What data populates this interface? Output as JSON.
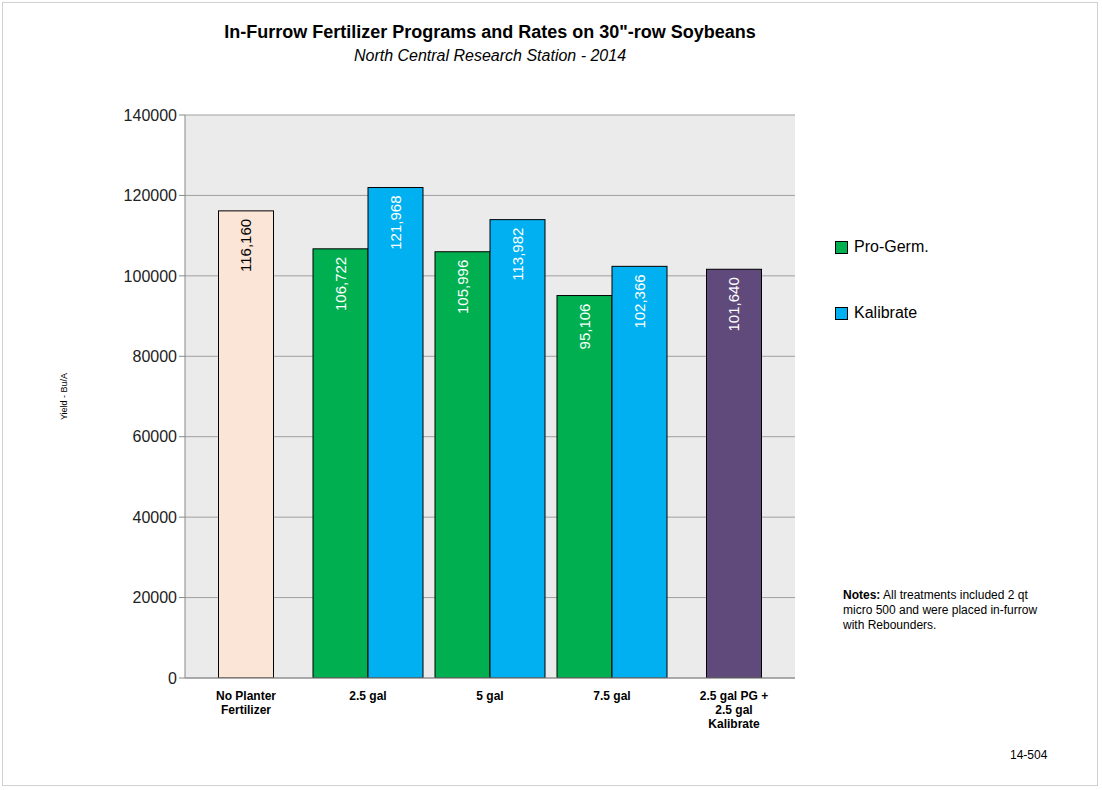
{
  "chart_data": {
    "type": "bar",
    "title": "In-Furrow Fertilizer Programs and Rates on 30\"-row Soybeans",
    "subtitle": "North Central Research Station - 2014",
    "y_label": "Yield - Bu/A",
    "categories": [
      "No Planter Fertilizer",
      "2.5 gal",
      "5 gal",
      "7.5 gal",
      "2.5 gal PG + 2.5 gal Kalibrate"
    ],
    "series": [
      {
        "name": "Pro-Germ.",
        "color": "#00b050",
        "values": [
          null,
          106722,
          105996,
          95106,
          null
        ],
        "value_labels": [
          null,
          "106,722",
          "105,996",
          "95,106",
          null
        ]
      },
      {
        "name": "Kalibrate",
        "color": "#00b0f0",
        "values": [
          null,
          121968,
          113982,
          102366,
          null
        ],
        "value_labels": [
          null,
          "121,968",
          "113,982",
          "102,366",
          null
        ]
      },
      {
        "colors": [
          "#fbe5d6",
          null,
          null,
          null,
          "#604a7b"
        ],
        "values": [
          116160,
          null,
          null,
          null,
          101640
        ],
        "value_labels": [
          "116,160",
          null,
          null,
          null,
          "101,640"
        ]
      }
    ],
    "ylim": [
      0,
      140000
    ],
    "yticks": [
      0,
      20000,
      40000,
      60000,
      80000,
      100000,
      120000,
      140000
    ],
    "grid": true,
    "legend": "right",
    "data_labels": true,
    "annotations": [
      "Notes: All treatments included 2 qt micro 500 and were placed in-furrow with Rebounders.",
      "14-504"
    ]
  }
}
